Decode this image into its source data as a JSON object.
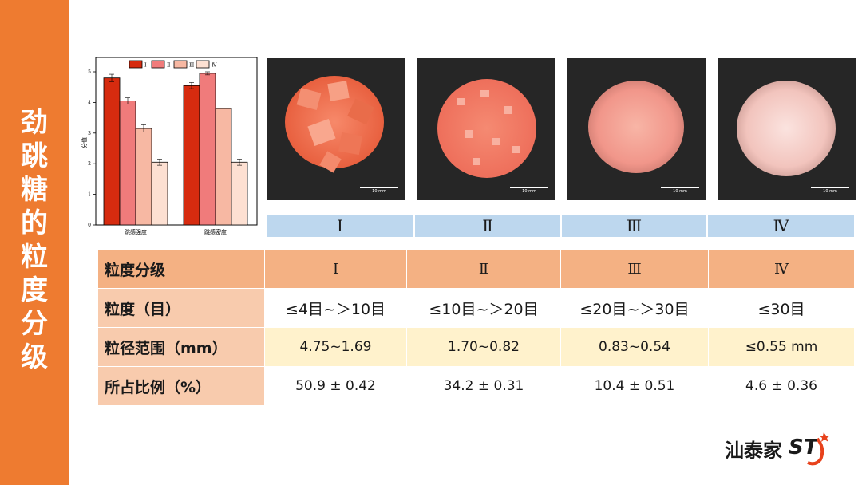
{
  "sidebar": {
    "title_chars": [
      "劲",
      "跳",
      "糖",
      "的",
      "粒",
      "度",
      "分",
      "级"
    ]
  },
  "chart_data": {
    "type": "bar",
    "categories": [
      "跳感强度",
      "跳感密度"
    ],
    "series": [
      {
        "name": "Ⅰ",
        "values": [
          4.8,
          4.55
        ],
        "color": "#d62b0f"
      },
      {
        "name": "Ⅱ",
        "values": [
          4.05,
          4.95
        ],
        "color": "#f07b7b"
      },
      {
        "name": "Ⅲ",
        "values": [
          3.15,
          3.8
        ],
        "color": "#f7b8a3"
      },
      {
        "name": "Ⅳ",
        "values": [
          2.05,
          2.05
        ],
        "color": "#fde0d2"
      }
    ],
    "errors": [
      [
        0.12,
        0.1
      ],
      [
        0.1,
        0.05
      ],
      [
        0.12,
        0
      ],
      [
        0.1,
        0.1
      ]
    ],
    "ylabel": "分值",
    "ylim": [
      0,
      5
    ],
    "yticks": [
      "0",
      "1",
      "2",
      "3",
      "4",
      "5"
    ],
    "legend": "top"
  },
  "photos": [
    {
      "scale_label": "10 mm"
    },
    {
      "scale_label": "10 mm"
    },
    {
      "scale_label": "10 mm"
    },
    {
      "scale_label": "10 mm"
    }
  ],
  "numerals": [
    "Ⅰ",
    "Ⅱ",
    "Ⅲ",
    "Ⅳ"
  ],
  "table": {
    "rows": [
      {
        "header": "粒度分级",
        "values": [
          "Ⅰ",
          "Ⅱ",
          "Ⅲ",
          "Ⅳ"
        ]
      },
      {
        "header": "粒度（目）",
        "values": [
          "≤4目~＞10目",
          "≤10目~＞20目",
          "≤20目~＞30目",
          "≤30目"
        ]
      },
      {
        "header": "粒径范围（mm）",
        "values": [
          "4.75~1.69",
          "1.70~0.82",
          "0.83~0.54",
          "≤0.55 mm"
        ]
      },
      {
        "header": "所占比例（%）",
        "values": [
          "50.9 ± 0.42",
          "34.2 ± 0.31",
          "10.4 ± 0.51",
          "4.6 ± 0.36"
        ]
      }
    ]
  },
  "logo": {
    "text": "汕泰家",
    "mark": "ST",
    "accent": "#e8421c"
  }
}
